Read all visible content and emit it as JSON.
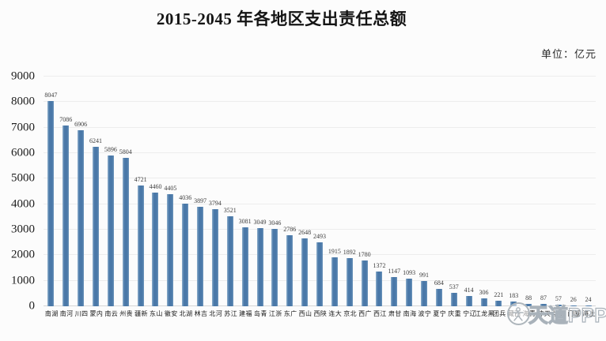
{
  "page": {
    "title": "2015-2045 年各地区支出责任总额",
    "unit_label": "单位：亿元",
    "watermark_text": "天道PPP"
  },
  "chart_data": {
    "type": "bar",
    "title": "2015-2045 年各地区支出责任总额",
    "unit": "亿元",
    "categories": [
      "湖南",
      "河南",
      "四川",
      "内蒙",
      "云南",
      "贵州",
      "新疆",
      "山东",
      "安徽",
      "湖北",
      "吉林",
      "河北",
      "江苏",
      "福建",
      "青岛",
      "浙江",
      "广东",
      "山西",
      "陕西",
      "大连",
      "北京",
      "广西",
      "江西",
      "甘肃",
      "海南",
      "宁波",
      "宁夏",
      "重庆",
      "辽宁",
      "黑龙江",
      "兵团",
      "西藏",
      "青海",
      "天津",
      "深圳",
      "厦门",
      "上海"
    ],
    "values": [
      8047,
      7086,
      6906,
      6241,
      5896,
      5804,
      4721,
      4460,
      4405,
      4036,
      3897,
      3794,
      3521,
      3081,
      3049,
      3046,
      2786,
      2648,
      2493,
      1915,
      1892,
      1780,
      1372,
      1147,
      1093,
      991,
      684,
      537,
      414,
      306,
      221,
      183,
      88,
      87,
      57,
      26,
      24
    ],
    "ylim": [
      0,
      9000
    ],
    "yticks": [
      9000,
      8000,
      7000,
      6000,
      5000,
      4000,
      3000,
      2000,
      1000,
      0
    ],
    "grid": "horizontal",
    "legend": "none",
    "data_labels": true,
    "bar_color": "#4a78a8"
  }
}
